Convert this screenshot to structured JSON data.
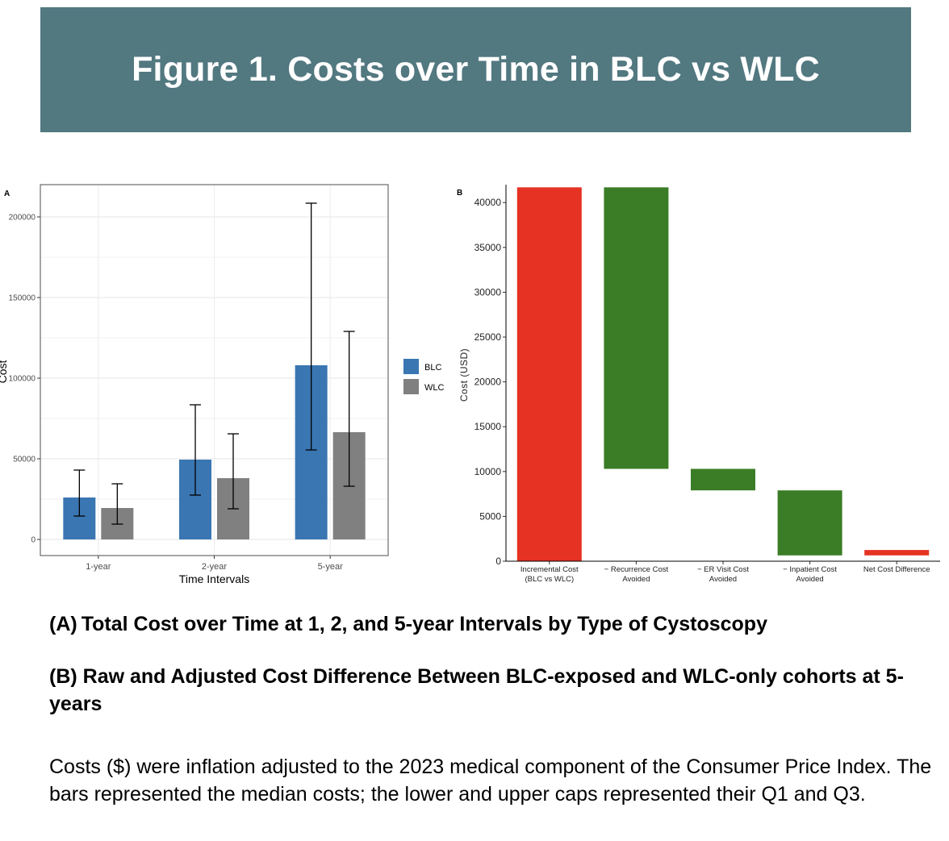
{
  "title": "Figure 1. Costs over Time in BLC vs WLC",
  "chart_data": [
    {
      "panel": "A",
      "type": "bar",
      "xlabel": "Time Intervals",
      "ylabel": "Cost",
      "categories": [
        "1-year",
        "2-year",
        "5-year"
      ],
      "ylim": [
        -10000,
        220000
      ],
      "yticks": [
        0,
        50000,
        100000,
        150000,
        200000
      ],
      "grid": true,
      "legend_position": "right",
      "series": [
        {
          "name": "BLC",
          "color": "#3a76b2",
          "values": [
            26000,
            49500,
            108000
          ],
          "q1": [
            14500,
            27500,
            55500
          ],
          "q3": [
            43000,
            83500,
            208500
          ]
        },
        {
          "name": "WLC",
          "color": "#808080",
          "values": [
            19500,
            38000,
            66500
          ],
          "q1": [
            9500,
            19000,
            33000
          ],
          "q3": [
            34500,
            65500,
            129000
          ]
        }
      ]
    },
    {
      "panel": "B",
      "type": "waterfall",
      "ylabel": "Cost (USD)",
      "ylim": [
        0,
        42000
      ],
      "yticks": [
        0,
        5000,
        10000,
        15000,
        20000,
        25000,
        30000,
        35000,
        40000
      ],
      "grid": false,
      "categories": [
        [
          "Incremental Cost",
          "(BLC vs WLC)"
        ],
        [
          "− Recurrence Cost",
          "Avoided"
        ],
        [
          "− ER Visit Cost",
          "Avoided"
        ],
        [
          "− Inpatient Cost",
          "Avoided"
        ],
        [
          "Net Cost Difference"
        ]
      ],
      "bars": [
        {
          "start": 0,
          "end": 41700,
          "color": "#e53222"
        },
        {
          "start": 41700,
          "end": 10300,
          "color": "#3a7d26"
        },
        {
          "start": 10300,
          "end": 7900,
          "color": "#3a7d26"
        },
        {
          "start": 7900,
          "end": 650,
          "color": "#3a7d26"
        },
        {
          "start": 650,
          "end": 1250,
          "color": "#e53222"
        }
      ]
    }
  ],
  "captions": {
    "a": "(A) Total Cost over Time at 1, 2, and 5-year Intervals by Type of Cystoscopy",
    "b": "(B) Raw and Adjusted Cost Difference Between BLC-exposed and WLC-only cohorts at 5-years"
  },
  "note": "Costs ($) were inflation adjusted to the 2023 medical component of the Consumer Price Index. The bars represented the median costs; the lower and upper caps represented their Q1 and Q3."
}
